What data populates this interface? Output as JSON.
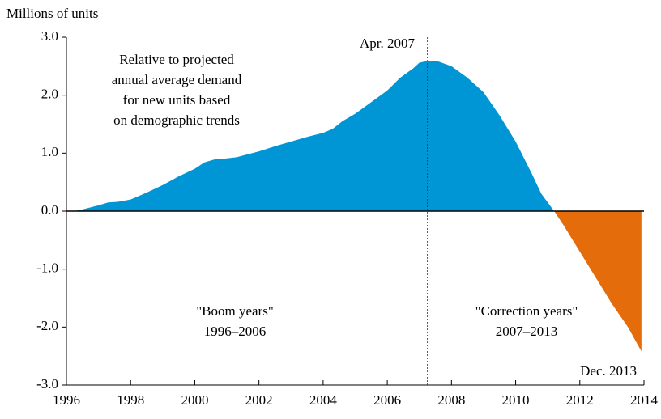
{
  "chart_data": {
    "type": "area",
    "y_label": "Millions of units",
    "x": [
      1996.25,
      1996.5,
      1997.0,
      1997.3,
      1997.6,
      1998.0,
      1998.5,
      1999.0,
      1999.5,
      2000.0,
      2000.3,
      2000.6,
      2001.0,
      2001.3,
      2002.0,
      2002.5,
      2003.0,
      2003.5,
      2004.0,
      2004.3,
      2004.6,
      2005.0,
      2005.5,
      2006.0,
      2006.4,
      2006.8,
      2007.0,
      2007.25,
      2007.6,
      2008.0,
      2008.5,
      2009.0,
      2009.5,
      2010.0,
      2010.5,
      2010.8,
      2011.2,
      2011.5,
      2012.0,
      2012.5,
      2013.0,
      2013.5,
      2013.92
    ],
    "values": [
      0.0,
      0.03,
      0.1,
      0.15,
      0.16,
      0.2,
      0.32,
      0.45,
      0.6,
      0.73,
      0.84,
      0.89,
      0.91,
      0.93,
      1.03,
      1.12,
      1.2,
      1.28,
      1.35,
      1.42,
      1.55,
      1.68,
      1.88,
      2.08,
      2.3,
      2.46,
      2.56,
      2.59,
      2.58,
      2.5,
      2.3,
      2.05,
      1.65,
      1.2,
      0.65,
      0.3,
      0.0,
      -0.25,
      -0.7,
      -1.15,
      -1.6,
      -2.0,
      -2.42
    ],
    "color": "#0096d6",
    "negative_color": "#e46c0a",
    "xlim": [
      1996,
      2014
    ],
    "xticks": [
      1996,
      1998,
      2000,
      2002,
      2004,
      2006,
      2008,
      2010,
      2012,
      2014
    ],
    "ylim": [
      -3,
      3
    ],
    "yticks": [
      {
        "value": -3,
        "label": "-3.0"
      },
      {
        "value": -2,
        "label": "-2.0"
      },
      {
        "value": -1,
        "label": "-1.0"
      },
      {
        "value": 0,
        "label": "0.0"
      },
      {
        "value": 1,
        "label": "1.0"
      },
      {
        "value": 2,
        "label": "2.0"
      },
      {
        "value": 3,
        "label": "3.0"
      }
    ],
    "annotations": [
      {
        "lines": [
          "Relative to projected",
          "annual average demand",
          "for new units based",
          "on demographic trends"
        ]
      },
      {
        "lines": [
          "Apr. 2007"
        ],
        "x": 2007.25
      },
      {
        "lines": [
          "\"Boom years\"",
          "1996–2006"
        ]
      },
      {
        "lines": [
          "\"Correction years\"",
          "2007–2013"
        ]
      },
      {
        "lines": [
          "Dec. 2013"
        ]
      }
    ]
  }
}
